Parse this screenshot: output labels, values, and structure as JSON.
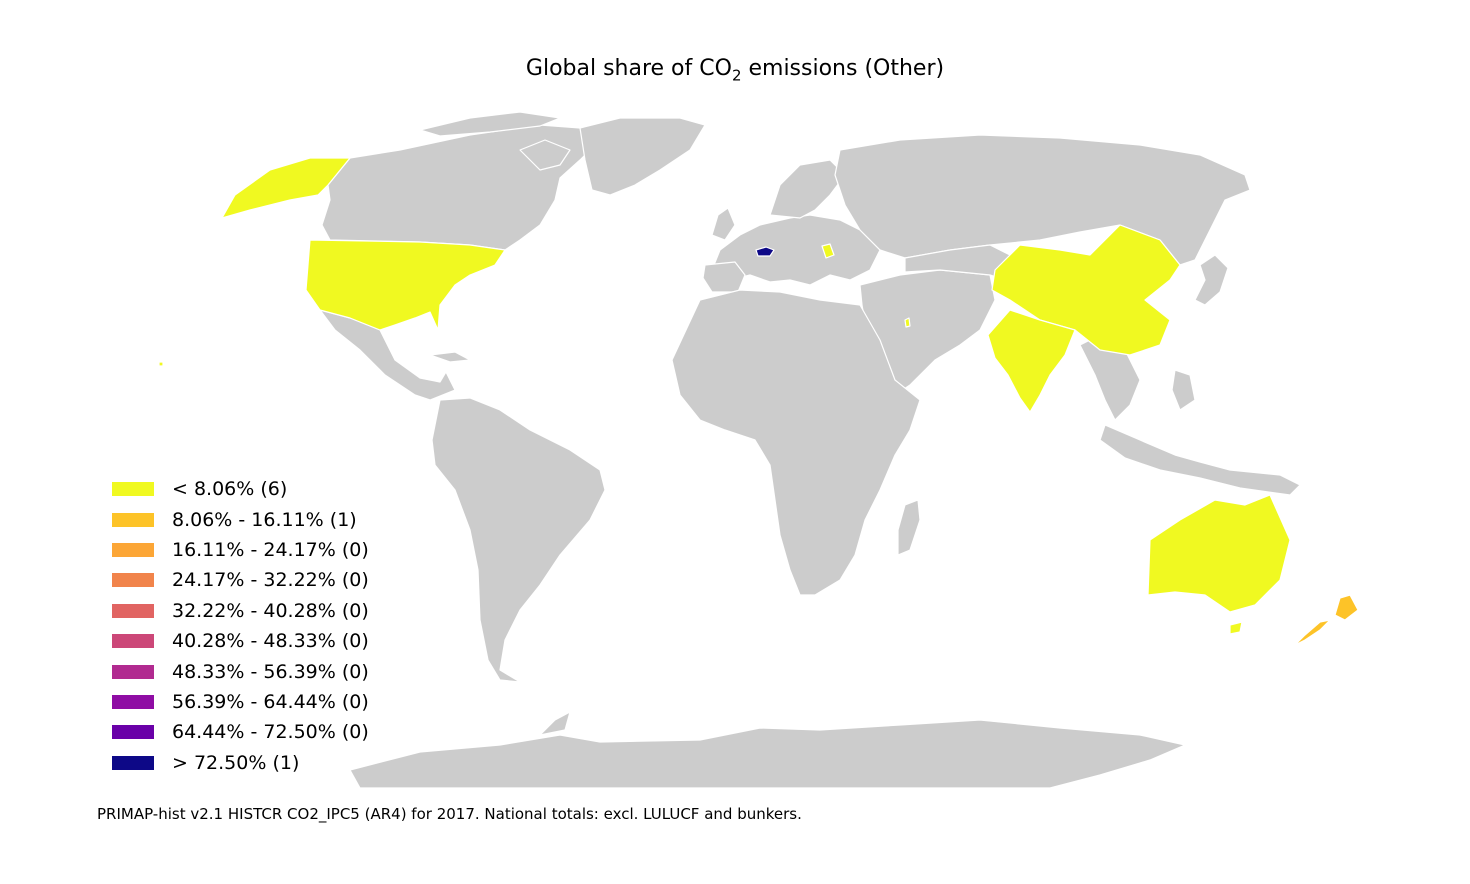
{
  "title": {
    "prefix": "Global share of CO",
    "subscript": "2",
    "suffix": " emissions (Other)"
  },
  "colors": {
    "land": "#cccccc",
    "border": "#ffffff",
    "background": "#ffffff"
  },
  "legend": [
    {
      "label": "< 8.06% (6)",
      "color": "#f0f921"
    },
    {
      "label": "8.06% - 16.11% (1)",
      "color": "#fdc328"
    },
    {
      "label": "16.11% - 24.17% (0)",
      "color": "#fca636"
    },
    {
      "label": "24.17% - 32.22% (0)",
      "color": "#f1844b"
    },
    {
      "label": "32.22% - 40.28% (0)",
      "color": "#e16462"
    },
    {
      "label": "40.28% - 48.33% (0)",
      "color": "#cc4778"
    },
    {
      "label": "48.33% - 56.39% (0)",
      "color": "#b12a90"
    },
    {
      "label": "56.39% - 64.44% (0)",
      "color": "#8f0da4"
    },
    {
      "label": "64.44% - 72.50% (0)",
      "color": "#6a00a8"
    },
    {
      "label": "> 72.50% (1)",
      "color": "#0d0887"
    }
  ],
  "highlighted_regions": [
    {
      "region": "united-states",
      "color": "#f0f921"
    },
    {
      "region": "china",
      "color": "#f0f921"
    },
    {
      "region": "india",
      "color": "#f0f921"
    },
    {
      "region": "australia",
      "color": "#f0f921"
    },
    {
      "region": "moldova",
      "color": "#f0f921"
    },
    {
      "region": "qatar",
      "color": "#f0f921"
    },
    {
      "region": "new-zealand",
      "color": "#fdc328"
    },
    {
      "region": "switzerland",
      "color": "#0d0887"
    }
  ],
  "source": "PRIMAP-hist v2.1 HISTCR CO2_IPC5 (AR4) for 2017. National totals: excl. LULUCF and bunkers."
}
